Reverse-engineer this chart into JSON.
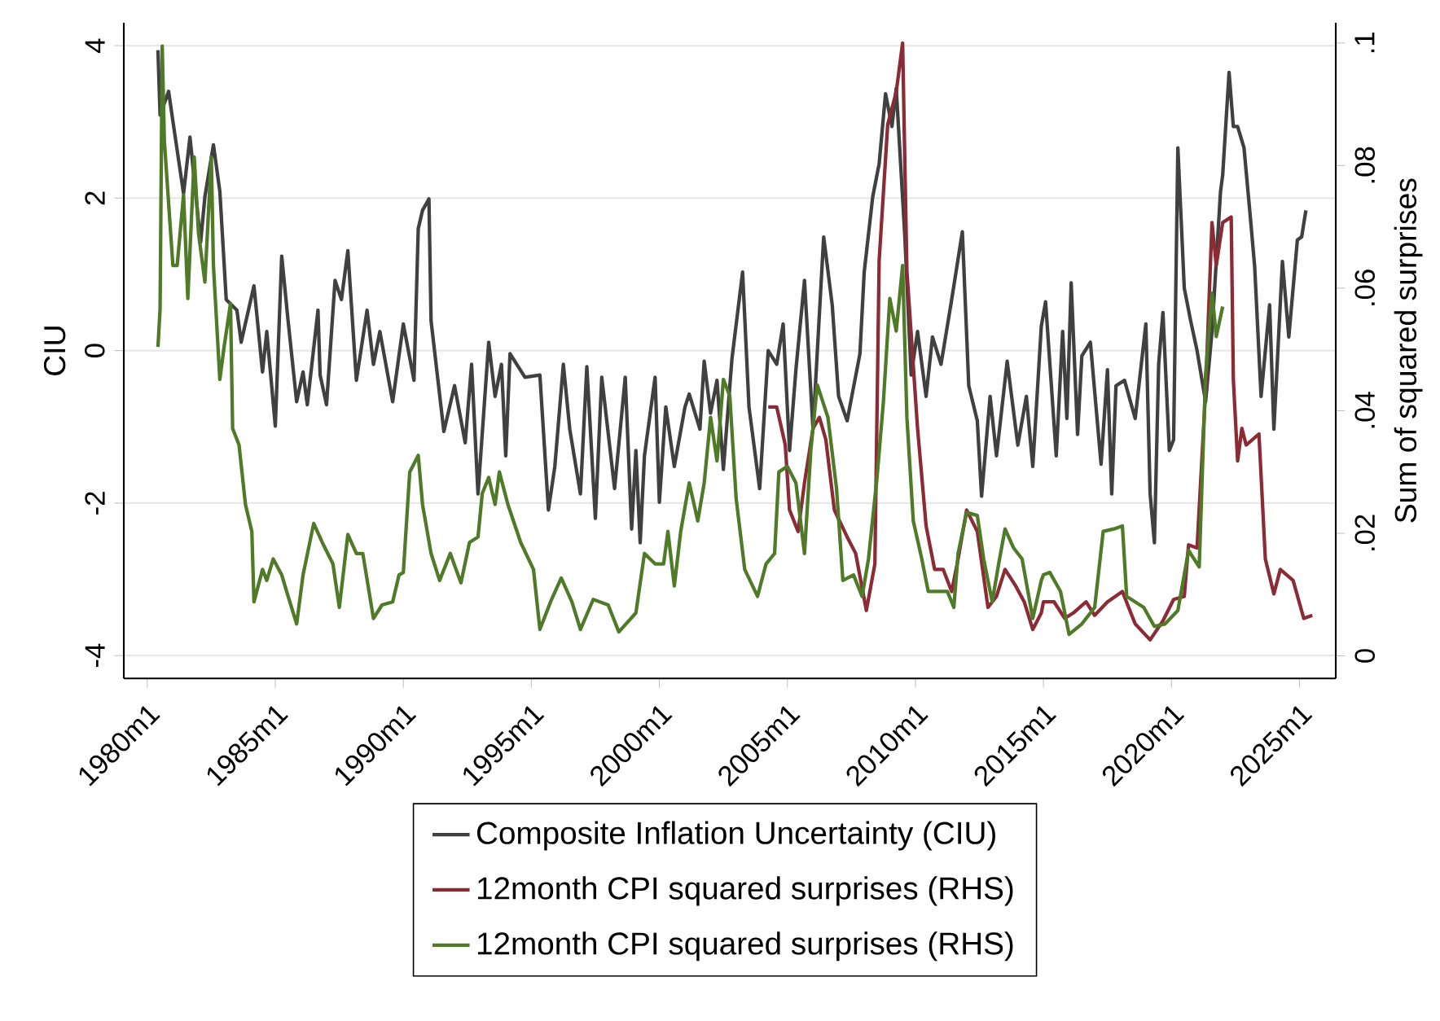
{
  "chart_data": {
    "type": "line",
    "ylabel": "CIU",
    "y2label": "Sum of squared surprises",
    "xlim": [
      "1979-02",
      "2026-06"
    ],
    "ylim": [
      -4.3,
      4.3
    ],
    "y2lim": [
      -0.0037,
      0.1033
    ],
    "xticks": [
      {
        "value": "1980-01",
        "label": "1980m1"
      },
      {
        "value": "1985-01",
        "label": "1985m1"
      },
      {
        "value": "1990-01",
        "label": "1990m1"
      },
      {
        "value": "1995-01",
        "label": "1995m1"
      },
      {
        "value": "2000-01",
        "label": "2000m1"
      },
      {
        "value": "2005-01",
        "label": "2005m1"
      },
      {
        "value": "2010-01",
        "label": "2010m1"
      },
      {
        "value": "2015-01",
        "label": "2015m1"
      },
      {
        "value": "2020-01",
        "label": "2020m1"
      },
      {
        "value": "2025-01",
        "label": "2025m1"
      }
    ],
    "yticks": [
      -4,
      -2,
      0,
      2,
      4
    ],
    "y2ticks": [
      {
        "value": 0,
        "label": "0"
      },
      {
        "value": 0.02,
        "label": ".02"
      },
      {
        "value": 0.04,
        "label": ".04"
      },
      {
        "value": 0.06,
        "label": ".06"
      },
      {
        "value": 0.08,
        "label": ".08"
      },
      {
        "value": 0.1,
        "label": ".1"
      }
    ],
    "grid": "y",
    "legend": "bottom",
    "series": [
      {
        "name": "Composite Inflation Uncertainty (CIU)",
        "color": "#404040",
        "x": [
          "1980-06",
          "1980-07",
          "1980-11",
          "1981-01",
          "1981-06",
          "1981-09",
          "1982-02",
          "1982-04",
          "1982-08",
          "1982-11",
          "1983-02",
          "1983-07",
          "1983-09",
          "1984-03",
          "1984-07",
          "1984-09",
          "1985-01",
          "1985-04",
          "1985-07",
          "1985-11",
          "1986-02",
          "1986-04",
          "1986-09",
          "1986-10",
          "1987-01",
          "1987-05",
          "1987-08",
          "1987-11",
          "1988-03",
          "1988-08",
          "1988-11",
          "1989-02",
          "1989-08",
          "1990-01",
          "1990-06",
          "1990-08",
          "1990-10",
          "1991-01",
          "1991-02",
          "1991-08",
          "1992-01",
          "1992-06",
          "1992-09",
          "1992-12",
          "1993-05",
          "1993-08",
          "1993-11",
          "1994-01",
          "1994-03",
          "1994-10",
          "1995-05",
          "1995-09",
          "1995-12",
          "1996-04",
          "1996-07",
          "1996-12",
          "1997-03",
          "1997-07",
          "1997-10",
          "1998-04",
          "1998-09",
          "1998-12",
          "1999-02",
          "1999-04",
          "1999-06",
          "1999-11",
          "2000-01",
          "2000-04",
          "2000-08",
          "2001-01",
          "2001-03",
          "2001-08",
          "2001-10",
          "2002-01",
          "2002-04",
          "2002-07",
          "2002-11",
          "2003-04",
          "2003-07",
          "2003-12",
          "2004-04",
          "2004-08",
          "2004-11",
          "2005-02",
          "2005-05",
          "2005-09",
          "2006-01",
          "2006-06",
          "2006-10",
          "2007-01",
          "2007-05",
          "2007-11",
          "2008-01",
          "2008-05",
          "2008-08",
          "2008-11",
          "2009-02",
          "2009-04",
          "2009-08",
          "2009-11",
          "2010-02",
          "2010-06",
          "2010-09",
          "2011-01",
          "2011-06",
          "2011-11",
          "2012-02",
          "2012-06",
          "2012-08",
          "2012-12",
          "2013-03",
          "2013-08",
          "2014-01",
          "2014-05",
          "2014-08",
          "2014-12",
          "2015-02",
          "2015-07",
          "2015-10",
          "2015-12",
          "2016-02",
          "2016-05",
          "2016-07",
          "2016-11",
          "2017-04",
          "2017-07",
          "2017-09",
          "2017-11",
          "2018-03",
          "2018-08",
          "2019-01",
          "2019-03",
          "2019-05",
          "2019-07",
          "2019-09",
          "2019-12",
          "2020-02",
          "2020-04",
          "2020-07",
          "2020-10",
          "2021-01",
          "2021-05",
          "2021-08",
          "2021-12",
          "2022-01",
          "2022-04",
          "2022-06",
          "2022-08",
          "2022-11",
          "2023-02",
          "2023-04",
          "2023-07",
          "2023-11",
          "2024-01",
          "2024-05",
          "2024-08",
          "2024-12",
          "2025-02",
          "2025-04"
        ],
        "values": [
          3.94,
          3.09,
          3.4,
          3.01,
          2.06,
          2.8,
          1.42,
          2.02,
          2.7,
          2.09,
          0.67,
          0.53,
          0.11,
          0.85,
          -0.28,
          0.25,
          -0.99,
          1.24,
          0.39,
          -0.67,
          -0.28,
          -0.71,
          0.53,
          -0.32,
          -0.71,
          0.92,
          0.67,
          1.31,
          -0.39,
          0.53,
          -0.18,
          0.25,
          -0.67,
          0.35,
          -0.39,
          1.6,
          1.84,
          1.99,
          0.39,
          -1.06,
          -0.46,
          -1.21,
          -0.18,
          -1.88,
          0.11,
          -0.6,
          -0.18,
          -1.38,
          -0.04,
          -0.35,
          -0.32,
          -2.09,
          -1.52,
          -0.18,
          -1.03,
          -1.88,
          -0.21,
          -2.2,
          -0.35,
          -1.81,
          -0.35,
          -2.34,
          -1.31,
          -2.52,
          -1.38,
          -0.35,
          -1.99,
          -0.74,
          -1.52,
          -0.74,
          -0.57,
          -1.03,
          -0.14,
          -0.82,
          -0.39,
          -1.56,
          -0.11,
          1.03,
          -0.74,
          -1.81,
          0.0,
          -0.18,
          0.35,
          -1.31,
          -0.25,
          0.92,
          -1.03,
          1.49,
          0.6,
          -0.6,
          -0.92,
          -0.04,
          1.03,
          2.02,
          2.45,
          3.37,
          2.94,
          3.44,
          1.52,
          -0.32,
          0.25,
          -0.6,
          0.18,
          -0.18,
          0.67,
          1.56,
          -0.46,
          -0.92,
          -1.91,
          -0.6,
          -1.38,
          -0.14,
          -1.24,
          -0.6,
          -1.52,
          0.32,
          0.64,
          -1.38,
          0.25,
          -0.89,
          0.89,
          -1.1,
          -0.07,
          0.11,
          -1.49,
          -0.25,
          -1.88,
          -0.46,
          -0.39,
          -0.89,
          0.35,
          -1.88,
          -2.52,
          -0.18,
          0.5,
          -1.31,
          -1.17,
          2.66,
          0.82,
          0.39,
          0.0,
          -0.67,
          0.25,
          2.09,
          2.3,
          3.65,
          2.94,
          2.94,
          2.66,
          1.74,
          1.1,
          -0.6,
          0.6,
          -1.03,
          1.17,
          0.18,
          1.45,
          1.49,
          1.84
        ]
      },
      {
        "name": "12month CPI squared surprises (RHS)",
        "color": "#8b2b35",
        "axis": "y2",
        "x": [
          "2004-04",
          "2004-08",
          "2004-12",
          "2005-02",
          "2005-06",
          "2005-09",
          "2006-01",
          "2006-04",
          "2006-07",
          "2006-11",
          "2007-05",
          "2007-09",
          "2008-02",
          "2008-06",
          "2008-08",
          "2008-12",
          "2009-04",
          "2009-07",
          "2009-09",
          "2010-02",
          "2010-06",
          "2010-10",
          "2011-02",
          "2011-06",
          "2011-09",
          "2012-01",
          "2012-06",
          "2012-11",
          "2013-03",
          "2013-07",
          "2013-12",
          "2014-04",
          "2014-08",
          "2014-12",
          "2015-01",
          "2015-06",
          "2015-11",
          "2016-03",
          "2016-09",
          "2017-01",
          "2017-07",
          "2018-02",
          "2018-08",
          "2019-03",
          "2019-09",
          "2020-02",
          "2020-07",
          "2020-09",
          "2021-01",
          "2021-05",
          "2021-08",
          "2021-10",
          "2022-01",
          "2022-05",
          "2022-06",
          "2022-08",
          "2022-10",
          "2022-12",
          "2023-06",
          "2023-09",
          "2024-01",
          "2024-04",
          "2024-10",
          "2025-03",
          "2025-07"
        ],
        "values": [
          0.0406,
          0.0406,
          0.0344,
          0.0238,
          0.0203,
          0.0282,
          0.0371,
          0.0389,
          0.0353,
          0.0238,
          0.0194,
          0.0167,
          0.0074,
          0.015,
          0.0645,
          0.0867,
          0.092,
          0.1,
          0.0628,
          0.0371,
          0.0212,
          0.0141,
          0.0141,
          0.0105,
          0.0158,
          0.0238,
          0.0203,
          0.0079,
          0.0097,
          0.0141,
          0.0114,
          0.0088,
          0.0043,
          0.007,
          0.0088,
          0.0088,
          0.0061,
          0.007,
          0.0088,
          0.0066,
          0.0088,
          0.0105,
          0.0052,
          0.0026,
          0.0057,
          0.0092,
          0.0097,
          0.0181,
          0.0176,
          0.0433,
          0.0707,
          0.0637,
          0.0707,
          0.0716,
          0.0451,
          0.0318,
          0.0371,
          0.0344,
          0.0362,
          0.0158,
          0.0101,
          0.0141,
          0.0123,
          0.0061,
          0.0066
        ]
      },
      {
        "name": "12month CPI squared surprises (RHS)",
        "color": "#4f7a28",
        "axis": "y2",
        "x": [
          "1980-06",
          "1980-07",
          "1980-08",
          "1980-09",
          "1981-01",
          "1981-03",
          "1981-06",
          "1981-08",
          "1981-11",
          "1982-01",
          "1982-04",
          "1982-07",
          "1982-08",
          "1982-11",
          "1983-01",
          "1983-04",
          "1983-05",
          "1983-08",
          "1983-11",
          "1984-02",
          "1984-03",
          "1984-07",
          "1984-09",
          "1984-12",
          "1985-04",
          "1985-07",
          "1985-11",
          "1986-02",
          "1986-07",
          "1986-11",
          "1987-04",
          "1987-07",
          "1987-11",
          "1988-03",
          "1988-06",
          "1988-11",
          "1989-03",
          "1989-08",
          "1989-11",
          "1990-01",
          "1990-04",
          "1990-08",
          "1990-10",
          "1991-02",
          "1991-06",
          "1991-11",
          "1992-04",
          "1992-08",
          "1992-12",
          "1993-02",
          "1993-05",
          "1993-08",
          "1993-10",
          "1994-02",
          "1994-08",
          "1995-02",
          "1995-05",
          "1995-10",
          "1996-03",
          "1996-08",
          "1996-12",
          "1997-06",
          "1998-01",
          "1998-06",
          "1999-02",
          "1999-06",
          "1999-11",
          "2000-03",
          "2000-05",
          "2000-08",
          "2000-11",
          "2001-03",
          "2001-07",
          "2001-10",
          "2002-01",
          "2002-04",
          "2002-07",
          "2002-10",
          "2003-01",
          "2003-05",
          "2003-11",
          "2004-03",
          "2004-07",
          "2004-09",
          "2005-01",
          "2005-05",
          "2005-09",
          "2005-12",
          "2006-03",
          "2006-08",
          "2006-12",
          "2007-03",
          "2007-08",
          "2007-12",
          "2008-03",
          "2008-07",
          "2008-10",
          "2009-01",
          "2009-04",
          "2009-07",
          "2009-09",
          "2009-12",
          "2010-04",
          "2010-07",
          "2011-01",
          "2011-04",
          "2011-07",
          "2011-09",
          "2012-01",
          "2012-06",
          "2012-09",
          "2013-01",
          "2013-04",
          "2013-07",
          "2013-11",
          "2014-03",
          "2014-08",
          "2014-12",
          "2015-01",
          "2015-04",
          "2015-09",
          "2016-01",
          "2016-07",
          "2017-01",
          "2017-05",
          "2017-10",
          "2018-02",
          "2018-04",
          "2018-12",
          "2019-05",
          "2019-10",
          "2020-04",
          "2020-09",
          "2021-02",
          "2021-05",
          "2021-08",
          "2021-10",
          "2022-01"
        ],
        "values": [
          0.0504,
          0.0566,
          0.0995,
          0.084,
          0.0637,
          0.0637,
          0.0752,
          0.0583,
          0.0814,
          0.069,
          0.061,
          0.0814,
          0.0637,
          0.0451,
          0.0504,
          0.0575,
          0.0371,
          0.0344,
          0.0247,
          0.0203,
          0.0088,
          0.0141,
          0.0123,
          0.0158,
          0.0132,
          0.0097,
          0.0052,
          0.0132,
          0.0216,
          0.0185,
          0.015,
          0.0079,
          0.0198,
          0.0167,
          0.0167,
          0.0061,
          0.0083,
          0.0088,
          0.0132,
          0.0136,
          0.03,
          0.0327,
          0.0247,
          0.0167,
          0.0123,
          0.0167,
          0.0119,
          0.0185,
          0.0194,
          0.0265,
          0.0291,
          0.0247,
          0.03,
          0.0247,
          0.0185,
          0.0141,
          0.0043,
          0.0088,
          0.0127,
          0.0088,
          0.0043,
          0.0092,
          0.0083,
          0.0039,
          0.007,
          0.0167,
          0.015,
          0.015,
          0.0203,
          0.0114,
          0.0203,
          0.0282,
          0.022,
          0.0282,
          0.0389,
          0.0318,
          0.0451,
          0.0424,
          0.0256,
          0.0141,
          0.0097,
          0.015,
          0.0167,
          0.03,
          0.0309,
          0.0282,
          0.0167,
          0.0336,
          0.0442,
          0.0389,
          0.0274,
          0.0123,
          0.0132,
          0.0097,
          0.0158,
          0.0291,
          0.0415,
          0.0583,
          0.053,
          0.0637,
          0.0389,
          0.022,
          0.0158,
          0.0105,
          0.0105,
          0.0105,
          0.0079,
          0.0167,
          0.0234,
          0.0229,
          0.0158,
          0.0088,
          0.015,
          0.0207,
          0.0176,
          0.0158,
          0.0061,
          0.0123,
          0.0132,
          0.0136,
          0.0105,
          0.0035,
          0.0052,
          0.0079,
          0.0203,
          0.0207,
          0.0212,
          0.0097,
          0.0079,
          0.0048,
          0.0052,
          0.0074,
          0.0172,
          0.0145,
          0.0459,
          0.0592,
          0.0521,
          0.057
        ]
      }
    ]
  }
}
